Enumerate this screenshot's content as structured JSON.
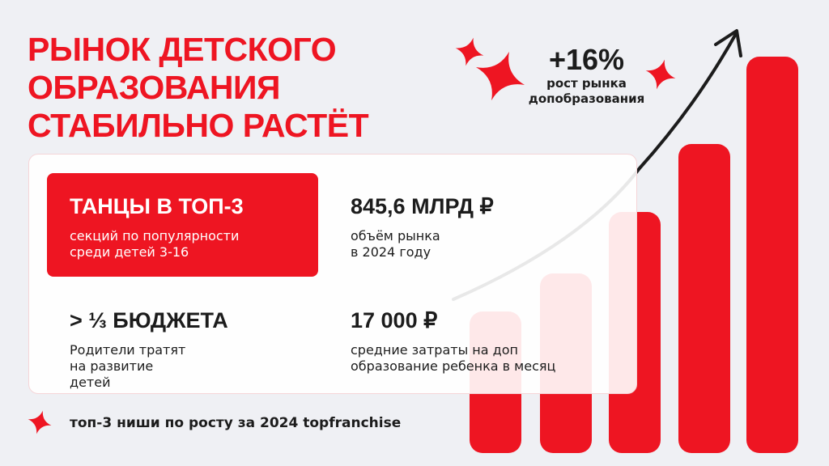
{
  "title": [
    "РЫНОК ДЕТСКОГО",
    "ОБРАЗОВАНИЯ",
    "СТАБИЛЬНО РАСТЁТ"
  ],
  "growth": {
    "value": "+16%",
    "label_line1": "рост рынка",
    "label_line2": "допобразования"
  },
  "stats": [
    {
      "headline": "ТАНЦЫ В ТОП-3",
      "line1": "секций по популярности",
      "line2": "среди детей 3-16"
    },
    {
      "headline": "845,6 МЛРД ₽",
      "line1": "объём рынка",
      "line2": "в 2024 году"
    },
    {
      "headline": "> ⅓ БЮДЖЕТА",
      "line1": "Родители тратят",
      "line2": "на развитие",
      "line3": "детей"
    },
    {
      "headline": "17 000 ₽",
      "line1": "средние затраты на доп",
      "line2": "образование ребенка в месяц"
    }
  ],
  "footnote": "топ-3 ниши по росту за 2024 topfranchise",
  "colors": {
    "accent": "#ee1522",
    "background": "#eff0f4",
    "text": "#1c1c1c"
  }
}
